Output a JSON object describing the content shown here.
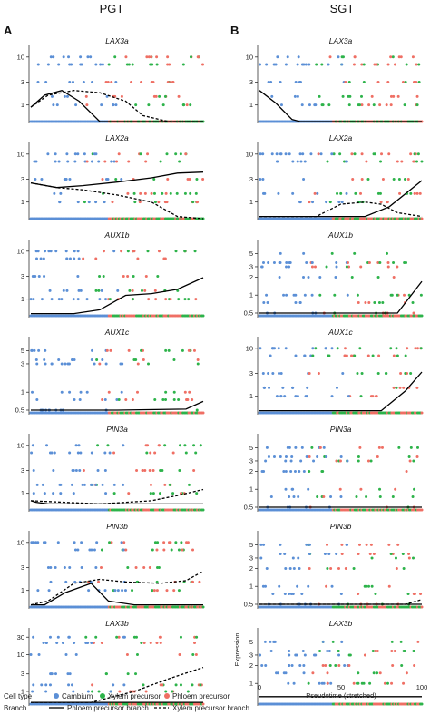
{
  "figure": {
    "columns": [
      {
        "letter": "A",
        "title": "PGT"
      },
      {
        "letter": "B",
        "title": "SGT"
      }
    ],
    "ylabel": "Expression",
    "xlabel": "Pseudotime (stretched)",
    "x_ticks": [
      "0",
      "50",
      "100"
    ]
  },
  "legend": {
    "cell_type_title": "Cell type",
    "cell_types": [
      {
        "label": "Cambium",
        "color": "#5b8fd6"
      },
      {
        "label": "Xylem precursor",
        "color": "#2db34a"
      },
      {
        "label": "Phloem precursor",
        "color": "#ef6f64"
      }
    ],
    "branch_title": "Branch",
    "branches": [
      {
        "label": "Phloem precursor branch",
        "style": "solid"
      },
      {
        "label": "Xylem precursor branch",
        "style": "dashed"
      }
    ]
  },
  "chart_data": [
    {
      "type": "scatter",
      "column": "PGT",
      "title": "LAX3a",
      "xlim": [
        0,
        100
      ],
      "y_scale": "log",
      "y_ticks": [
        "1",
        "3",
        "10"
      ],
      "series": [
        {
          "name": "Phloem precursor branch",
          "style": "solid",
          "x": [
            0,
            8,
            18,
            28,
            40,
            60,
            100
          ],
          "y": [
            0.9,
            1.6,
            2.0,
            1.2,
            0.2,
            0.1,
            0.1
          ]
        },
        {
          "name": "Xylem precursor branch",
          "style": "dashed",
          "x": [
            0,
            10,
            25,
            40,
            55,
            65,
            80,
            100
          ],
          "y": [
            0.9,
            1.6,
            2.0,
            1.8,
            1.2,
            0.6,
            0.15,
            0.1
          ]
        }
      ]
    },
    {
      "type": "scatter",
      "column": "PGT",
      "title": "LAX2a",
      "xlim": [
        0,
        100
      ],
      "y_scale": "log",
      "y_ticks": [
        "1",
        "3",
        "10"
      ],
      "series": [
        {
          "name": "Phloem precursor branch",
          "style": "solid",
          "x": [
            0,
            15,
            30,
            50,
            70,
            85,
            100
          ],
          "y": [
            2.5,
            2.0,
            2.2,
            2.6,
            3.2,
            4.0,
            4.2
          ]
        },
        {
          "name": "Xylem precursor branch",
          "style": "dashed",
          "x": [
            0,
            15,
            30,
            50,
            70,
            85,
            100
          ],
          "y": [
            2.5,
            2.0,
            1.8,
            1.4,
            1.0,
            0.5,
            0.4
          ]
        }
      ]
    },
    {
      "type": "scatter",
      "column": "PGT",
      "title": "AUX1b",
      "xlim": [
        0,
        100
      ],
      "y_scale": "log",
      "y_ticks": [
        "1",
        "3",
        "10"
      ],
      "series": [
        {
          "name": "Phloem precursor branch",
          "style": "solid",
          "x": [
            0,
            25,
            40,
            55,
            70,
            85,
            100
          ],
          "y": [
            0.5,
            0.5,
            0.6,
            1.2,
            1.3,
            1.6,
            2.8
          ]
        }
      ]
    },
    {
      "type": "scatter",
      "column": "PGT",
      "title": "AUX1c",
      "xlim": [
        0,
        100
      ],
      "y_scale": "log",
      "y_ticks": [
        "0.5",
        "1",
        "3",
        "5"
      ],
      "series": [
        {
          "name": "Phloem precursor branch",
          "style": "solid",
          "x": [
            0,
            50,
            90,
            100
          ],
          "y": [
            0.5,
            0.5,
            0.52,
            0.7
          ]
        }
      ]
    },
    {
      "type": "scatter",
      "column": "PGT",
      "title": "PIN3a",
      "xlim": [
        0,
        100
      ],
      "y_scale": "log",
      "y_ticks": [
        "1",
        "3",
        "10"
      ],
      "series": [
        {
          "name": "Phloem precursor branch",
          "style": "solid",
          "x": [
            0,
            3,
            10,
            40,
            100
          ],
          "y": [
            0.7,
            0.65,
            0.6,
            0.6,
            0.6
          ]
        },
        {
          "name": "Xylem precursor branch",
          "style": "dashed",
          "x": [
            0,
            40,
            70,
            85,
            100
          ],
          "y": [
            0.7,
            0.6,
            0.7,
            0.9,
            1.2
          ]
        }
      ]
    },
    {
      "type": "scatter",
      "column": "PGT",
      "title": "PIN3b",
      "xlim": [
        0,
        100
      ],
      "y_scale": "log",
      "y_ticks": [
        "1",
        "3",
        "10"
      ],
      "series": [
        {
          "name": "Phloem precursor branch",
          "style": "solid",
          "x": [
            0,
            8,
            20,
            35,
            45,
            60,
            100
          ],
          "y": [
            0.5,
            0.5,
            0.9,
            1.4,
            0.6,
            0.5,
            0.5
          ]
        },
        {
          "name": "Xylem precursor branch",
          "style": "dashed",
          "x": [
            0,
            10,
            25,
            40,
            55,
            75,
            90,
            100
          ],
          "y": [
            0.5,
            0.6,
            1.4,
            1.7,
            1.5,
            1.4,
            1.6,
            2.5
          ]
        }
      ]
    },
    {
      "type": "scatter",
      "column": "PGT",
      "title": "LAX3b",
      "xlim": [
        0,
        100
      ],
      "y_scale": "log",
      "y_ticks": [
        "1",
        "3",
        "10",
        "30"
      ],
      "series": [
        {
          "name": "Phloem precursor branch",
          "style": "solid",
          "x": [
            0,
            100
          ],
          "y": [
            0.5,
            0.5
          ]
        },
        {
          "name": "Xylem precursor branch",
          "style": "dashed",
          "x": [
            0,
            35,
            60,
            80,
            100
          ],
          "y": [
            0.5,
            0.5,
            1.0,
            2.2,
            4.5
          ]
        }
      ]
    },
    {
      "type": "scatter",
      "column": "SGT",
      "title": "LAX3a",
      "xlim": [
        0,
        100
      ],
      "y_scale": "log",
      "y_ticks": [
        "1",
        "3",
        "10"
      ],
      "series": [
        {
          "name": "Phloem precursor branch",
          "style": "solid",
          "x": [
            0,
            10,
            20,
            25,
            100
          ],
          "y": [
            2.0,
            1.1,
            0.5,
            0.4,
            0.4
          ]
        }
      ]
    },
    {
      "type": "scatter",
      "column": "SGT",
      "title": "LAX2a",
      "xlim": [
        0,
        100
      ],
      "y_scale": "log",
      "y_ticks": [
        "1",
        "3",
        "10"
      ],
      "series": [
        {
          "name": "Phloem precursor branch",
          "style": "solid",
          "x": [
            0,
            65,
            80,
            100
          ],
          "y": [
            0.5,
            0.5,
            0.8,
            2.8
          ]
        },
        {
          "name": "Xylem precursor branch",
          "style": "dashed",
          "x": [
            0,
            35,
            50,
            65,
            75,
            85,
            100
          ],
          "y": [
            0.5,
            0.5,
            0.9,
            1.0,
            0.9,
            0.6,
            0.5
          ]
        }
      ]
    },
    {
      "type": "scatter",
      "column": "SGT",
      "title": "AUX1b",
      "xlim": [
        0,
        100
      ],
      "y_scale": "log",
      "y_ticks": [
        "0.5",
        "1",
        "2",
        "3",
        "5"
      ],
      "series": [
        {
          "name": "Phloem precursor branch",
          "style": "solid",
          "x": [
            0,
            85,
            100
          ],
          "y": [
            0.5,
            0.5,
            1.7
          ]
        }
      ]
    },
    {
      "type": "scatter",
      "column": "SGT",
      "title": "AUX1c",
      "xlim": [
        0,
        100
      ],
      "y_scale": "log",
      "y_ticks": [
        "1",
        "3",
        "10"
      ],
      "series": [
        {
          "name": "Phloem precursor branch",
          "style": "solid",
          "x": [
            0,
            75,
            90,
            100
          ],
          "y": [
            0.5,
            0.5,
            1.3,
            3.2
          ]
        }
      ]
    },
    {
      "type": "scatter",
      "column": "SGT",
      "title": "PIN3a",
      "xlim": [
        0,
        100
      ],
      "y_scale": "log",
      "y_ticks": [
        "0.5",
        "1",
        "2",
        "3",
        "5"
      ],
      "series": [
        {
          "name": "Phloem precursor branch",
          "style": "solid",
          "x": [
            0,
            100
          ],
          "y": [
            0.5,
            0.5
          ]
        }
      ]
    },
    {
      "type": "scatter",
      "column": "SGT",
      "title": "PIN3b",
      "xlim": [
        0,
        100
      ],
      "y_scale": "log",
      "y_ticks": [
        "0.5",
        "1",
        "2",
        "3",
        "5"
      ],
      "series": [
        {
          "name": "Phloem precursor branch",
          "style": "solid",
          "x": [
            0,
            100
          ],
          "y": [
            0.5,
            0.5
          ]
        },
        {
          "name": "Xylem precursor branch",
          "style": "dashed",
          "x": [
            0,
            90,
            100
          ],
          "y": [
            0.5,
            0.5,
            0.6
          ]
        }
      ]
    },
    {
      "type": "scatter",
      "column": "SGT",
      "title": "LAX3b",
      "xlim": [
        0,
        100
      ],
      "y_scale": "log",
      "y_ticks": [
        "1",
        "2",
        "3",
        "5"
      ],
      "series": [
        {
          "name": "Phloem precursor branch",
          "style": "solid",
          "x": [
            0,
            100
          ],
          "y": [
            0.6,
            0.6
          ]
        }
      ]
    }
  ]
}
